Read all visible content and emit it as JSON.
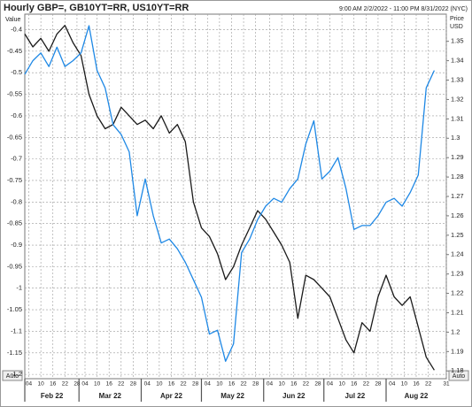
{
  "chart_data": {
    "type": "line",
    "title": "Hourly GBP=, GB10YT=RR, US10YT=RR",
    "subtitle": "9:00 AM 2/2/2022 - 11:00 PM 8/31/2022 (NYC)",
    "ylabel": "Value",
    "y2label": [
      "Price",
      "USD"
    ],
    "left_axis_button": "Auto",
    "right_axis_button": "Auto",
    "grid": true,
    "x": [
      "2022-02-02",
      "2022-02-06",
      "2022-02-10",
      "2022-02-14",
      "2022-02-18",
      "2022-02-22",
      "2022-02-26",
      "2022-03-02",
      "2022-03-06",
      "2022-03-10",
      "2022-03-14",
      "2022-03-18",
      "2022-03-22",
      "2022-03-26",
      "2022-03-30",
      "2022-04-03",
      "2022-04-07",
      "2022-04-11",
      "2022-04-15",
      "2022-04-19",
      "2022-04-23",
      "2022-04-27",
      "2022-05-01",
      "2022-05-05",
      "2022-05-09",
      "2022-05-13",
      "2022-05-17",
      "2022-05-21",
      "2022-05-25",
      "2022-05-29",
      "2022-06-02",
      "2022-06-06",
      "2022-06-10",
      "2022-06-14",
      "2022-06-18",
      "2022-06-22",
      "2022-06-26",
      "2022-06-30",
      "2022-07-04",
      "2022-07-08",
      "2022-07-12",
      "2022-07-16",
      "2022-07-20",
      "2022-07-24",
      "2022-07-28",
      "2022-08-01",
      "2022-08-05",
      "2022-08-09",
      "2022-08-13",
      "2022-08-17",
      "2022-08-21",
      "2022-08-25"
    ],
    "xlim": [
      "2022-02-02",
      "2022-08-31"
    ],
    "xticks": [
      {
        "value": "2022-02-04",
        "label": "04"
      },
      {
        "value": "2022-02-10",
        "label": "10"
      },
      {
        "value": "2022-02-16",
        "label": "16"
      },
      {
        "value": "2022-02-22",
        "label": "22"
      },
      {
        "value": "2022-02-28",
        "label": "28"
      },
      {
        "value": "2022-03-04",
        "label": "04"
      },
      {
        "value": "2022-03-10",
        "label": "10"
      },
      {
        "value": "2022-03-16",
        "label": "16"
      },
      {
        "value": "2022-03-22",
        "label": "22"
      },
      {
        "value": "2022-03-28",
        "label": "28"
      },
      {
        "value": "2022-04-04",
        "label": "04"
      },
      {
        "value": "2022-04-10",
        "label": "10"
      },
      {
        "value": "2022-04-16",
        "label": "16"
      },
      {
        "value": "2022-04-22",
        "label": "22"
      },
      {
        "value": "2022-04-28",
        "label": "28"
      },
      {
        "value": "2022-05-04",
        "label": "04"
      },
      {
        "value": "2022-05-10",
        "label": "10"
      },
      {
        "value": "2022-05-16",
        "label": "16"
      },
      {
        "value": "2022-05-22",
        "label": "22"
      },
      {
        "value": "2022-05-28",
        "label": "28"
      },
      {
        "value": "2022-06-04",
        "label": "04"
      },
      {
        "value": "2022-06-10",
        "label": "10"
      },
      {
        "value": "2022-06-16",
        "label": "16"
      },
      {
        "value": "2022-06-22",
        "label": "22"
      },
      {
        "value": "2022-06-28",
        "label": "28"
      },
      {
        "value": "2022-07-04",
        "label": "04"
      },
      {
        "value": "2022-07-10",
        "label": "10"
      },
      {
        "value": "2022-07-16",
        "label": "16"
      },
      {
        "value": "2022-07-22",
        "label": "22"
      },
      {
        "value": "2022-07-28",
        "label": "28"
      },
      {
        "value": "2022-08-04",
        "label": "04"
      },
      {
        "value": "2022-08-10",
        "label": "10"
      },
      {
        "value": "2022-08-16",
        "label": "16"
      },
      {
        "value": "2022-08-22",
        "label": "22"
      },
      {
        "value": "2022-08-31",
        "label": "31"
      }
    ],
    "month_labels": [
      {
        "value": "2022-02",
        "label": "Feb 22"
      },
      {
        "value": "2022-03",
        "label": "Mar 22"
      },
      {
        "value": "2022-04",
        "label": "Apr 22"
      },
      {
        "value": "2022-05",
        "label": "May 22"
      },
      {
        "value": "2022-06",
        "label": "Jun 22"
      },
      {
        "value": "2022-07",
        "label": "Jul 22"
      },
      {
        "value": "2022-08",
        "label": "Aug 22"
      }
    ],
    "ylim": [
      -1.21,
      -0.364
    ],
    "yticks": [
      -0.4,
      -0.45,
      -0.5,
      -0.55,
      -0.6,
      -0.65,
      -0.7,
      -0.75,
      -0.8,
      -0.85,
      -0.9,
      -0.95,
      -1,
      -1.05,
      -1.1,
      -1.15,
      -1.2
    ],
    "y2lim": [
      1.176,
      1.364
    ],
    "y2ticks": [
      1.18,
      1.19,
      1.2,
      1.21,
      1.22,
      1.23,
      1.24,
      1.25,
      1.26,
      1.27,
      1.28,
      1.29,
      1.3,
      1.31,
      1.32,
      1.33,
      1.34,
      1.35
    ],
    "series": [
      {
        "color": "#1a1a1a",
        "axis": "y",
        "values": [
          -0.41,
          -0.44,
          -0.42,
          -0.45,
          -0.41,
          -0.39,
          -0.43,
          -0.46,
          -0.55,
          -0.6,
          -0.63,
          -0.62,
          -0.58,
          -0.6,
          -0.62,
          -0.61,
          -0.63,
          -0.6,
          -0.64,
          -0.62,
          -0.66,
          -0.8,
          -0.86,
          -0.88,
          -0.92,
          -0.98,
          -0.95,
          -0.9,
          -0.86,
          -0.82,
          -0.84,
          -0.87,
          -0.9,
          -0.94,
          -1.07,
          -0.97,
          -0.98,
          -1.0,
          -1.02,
          -1.07,
          -1.12,
          -1.15,
          -1.08,
          -1.1,
          -1.02,
          -0.97,
          -1.02,
          -1.04,
          -1.02,
          -1.09,
          -1.16,
          -1.19
        ]
      },
      {
        "color": "#1e88e5",
        "axis": "y2",
        "values": [
          1.333,
          1.34,
          1.344,
          1.337,
          1.347,
          1.337,
          1.34,
          1.344,
          1.358,
          1.335,
          1.326,
          1.307,
          1.302,
          1.293,
          1.26,
          1.279,
          1.26,
          1.246,
          1.248,
          1.243,
          1.236,
          1.227,
          1.218,
          1.199,
          1.201,
          1.185,
          1.194,
          1.241,
          1.248,
          1.258,
          1.265,
          1.269,
          1.267,
          1.274,
          1.279,
          1.297,
          1.309,
          1.279,
          1.283,
          1.29,
          1.274,
          1.253,
          1.255,
          1.255,
          1.26,
          1.267,
          1.269,
          1.265,
          1.272,
          1.281,
          1.326,
          1.335
        ]
      }
    ]
  }
}
